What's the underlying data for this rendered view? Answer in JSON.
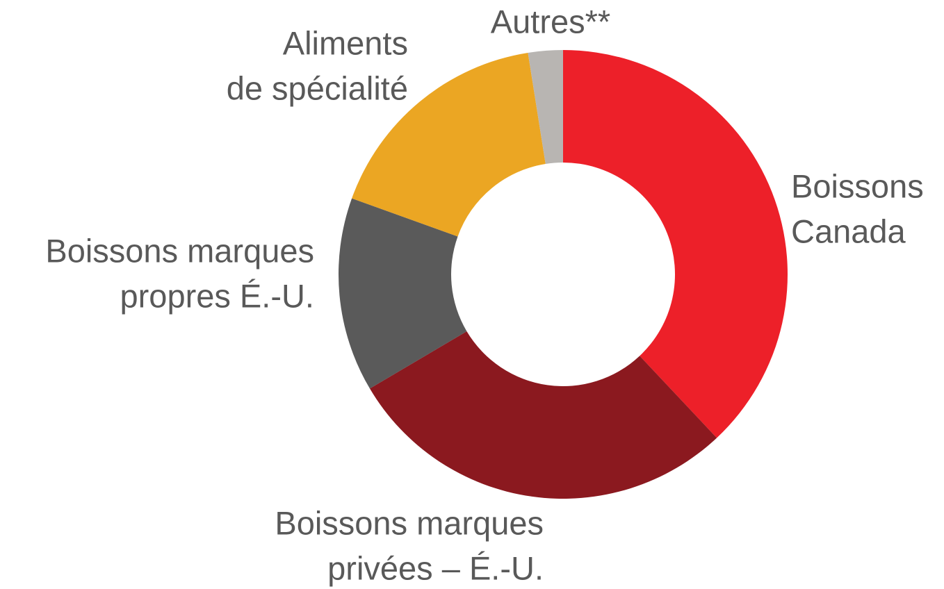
{
  "chart_data": {
    "type": "donut",
    "categories": [
      [
        "Boissons",
        "Canada"
      ],
      [
        "Boissons marques",
        "privées – É.-U."
      ],
      [
        "Boissons marques",
        "propres É.-U."
      ],
      [
        "Aliments",
        "de spécialité"
      ],
      [
        "Autres**"
      ]
    ],
    "values": [
      38,
      28.5,
      14,
      17,
      2.5
    ],
    "colors": [
      "#ed2029",
      "#8b191f",
      "#5a5a5a",
      "#eba623",
      "#b8b5b2"
    ]
  }
}
